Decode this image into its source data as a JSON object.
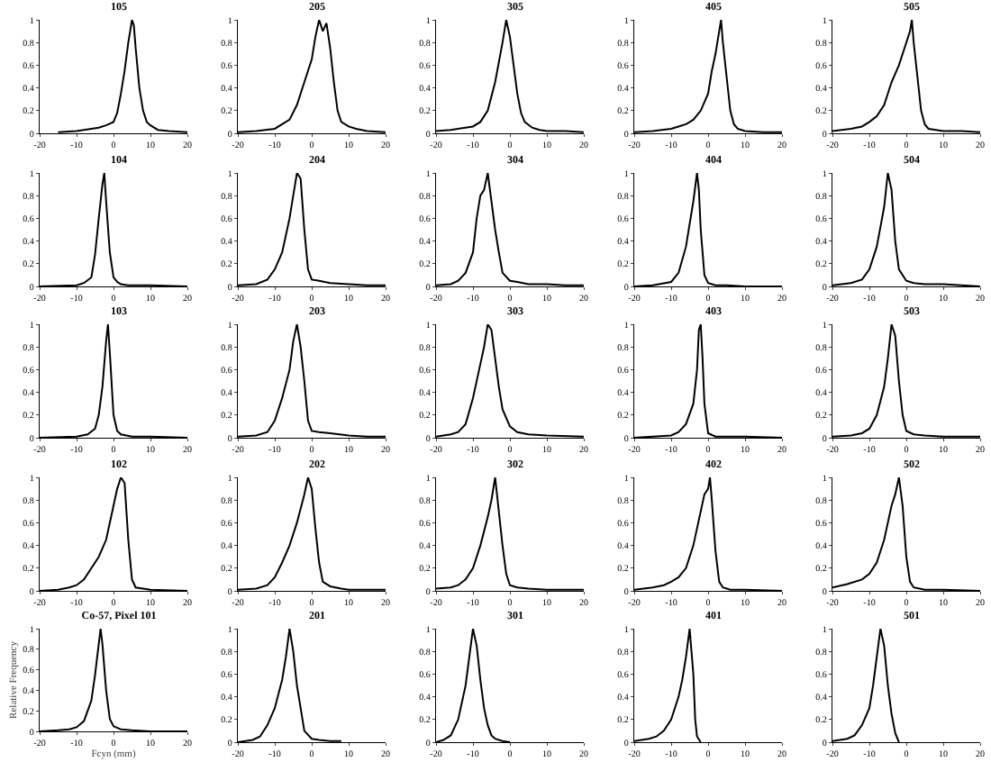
{
  "chart_data": [
    {
      "type": "line",
      "title": "105",
      "color": "#000000",
      "xlim": [
        -20,
        20
      ],
      "ylim": [
        0,
        1
      ],
      "xticks": [
        -20,
        -10,
        0,
        10,
        20
      ],
      "yticks": [
        0,
        0.2,
        0.4,
        0.6,
        0.8,
        1
      ],
      "x": [
        -15,
        -10,
        -6,
        -4,
        -2,
        0,
        1,
        2,
        3,
        4,
        4.5,
        5,
        5.5,
        6,
        7,
        8,
        9,
        10,
        12,
        15,
        20
      ],
      "values": [
        0.01,
        0.02,
        0.04,
        0.05,
        0.07,
        0.1,
        0.18,
        0.35,
        0.55,
        0.8,
        0.9,
        1,
        0.95,
        0.75,
        0.4,
        0.2,
        0.1,
        0.07,
        0.03,
        0.02,
        0.01
      ]
    },
    {
      "type": "line",
      "title": "205",
      "color": "#000000",
      "xlim": [
        -20,
        20
      ],
      "ylim": [
        0,
        1
      ],
      "xticks": [
        -20,
        -10,
        0,
        10,
        20
      ],
      "yticks": [
        0,
        0.2,
        0.4,
        0.6,
        0.8,
        1
      ],
      "x": [
        -20,
        -15,
        -10,
        -8,
        -6,
        -4,
        -2,
        0,
        1,
        2,
        3,
        4,
        5,
        6,
        7,
        8,
        10,
        12,
        15,
        20
      ],
      "values": [
        0.01,
        0.02,
        0.04,
        0.08,
        0.12,
        0.25,
        0.45,
        0.65,
        0.85,
        1,
        0.9,
        0.97,
        0.75,
        0.45,
        0.2,
        0.1,
        0.06,
        0.04,
        0.02,
        0.01
      ]
    },
    {
      "type": "line",
      "title": "305",
      "color": "#000000",
      "xlim": [
        -20,
        20
      ],
      "ylim": [
        0,
        1
      ],
      "xticks": [
        -20,
        -10,
        0,
        10,
        20
      ],
      "yticks": [
        0,
        0.2,
        0.4,
        0.6,
        0.8,
        1
      ],
      "x": [
        -20,
        -16,
        -12,
        -10,
        -8,
        -6,
        -4,
        -2,
        -1,
        0,
        1,
        2,
        3,
        4,
        6,
        8,
        10,
        15,
        20
      ],
      "values": [
        0.02,
        0.03,
        0.05,
        0.06,
        0.1,
        0.2,
        0.45,
        0.8,
        1,
        0.85,
        0.6,
        0.35,
        0.18,
        0.1,
        0.05,
        0.03,
        0.02,
        0.02,
        0.01
      ]
    },
    {
      "type": "line",
      "title": "405",
      "color": "#000000",
      "xlim": [
        -20,
        20
      ],
      "ylim": [
        0,
        1
      ],
      "xticks": [
        -20,
        -10,
        0,
        10,
        20
      ],
      "yticks": [
        0,
        0.2,
        0.4,
        0.6,
        0.8,
        1
      ],
      "x": [
        -20,
        -15,
        -10,
        -8,
        -6,
        -4,
        -2,
        0,
        1,
        2,
        3,
        3.5,
        4,
        5,
        6,
        7,
        8,
        10,
        15,
        20
      ],
      "values": [
        0.01,
        0.02,
        0.04,
        0.06,
        0.08,
        0.12,
        0.2,
        0.35,
        0.55,
        0.7,
        0.9,
        1,
        0.8,
        0.5,
        0.2,
        0.08,
        0.04,
        0.02,
        0.01,
        0.01
      ]
    },
    {
      "type": "line",
      "title": "505",
      "color": "#000000",
      "xlim": [
        -20,
        20
      ],
      "ylim": [
        0,
        1
      ],
      "xticks": [
        -20,
        -10,
        0,
        10,
        20
      ],
      "yticks": [
        0,
        0.2,
        0.4,
        0.6,
        0.8,
        1
      ],
      "x": [
        -20,
        -15,
        -12,
        -10,
        -8,
        -6,
        -4,
        -2,
        0,
        1,
        1.5,
        2,
        3,
        4,
        5,
        6,
        8,
        10,
        15,
        20
      ],
      "values": [
        0.02,
        0.04,
        0.06,
        0.1,
        0.15,
        0.25,
        0.45,
        0.6,
        0.8,
        0.9,
        1,
        0.8,
        0.5,
        0.2,
        0.08,
        0.04,
        0.03,
        0.02,
        0.02,
        0.01
      ]
    },
    {
      "type": "line",
      "title": "104",
      "color": "#000000",
      "xlim": [
        -20,
        20
      ],
      "ylim": [
        0,
        1
      ],
      "xticks": [
        -20,
        -10,
        0,
        10,
        20
      ],
      "yticks": [
        0,
        0.2,
        0.4,
        0.6,
        0.8,
        1
      ],
      "x": [
        -20,
        -10,
        -8,
        -6,
        -5,
        -4,
        -3,
        -2.5,
        -2,
        -1,
        0,
        1,
        2,
        4,
        10,
        20
      ],
      "values": [
        0,
        0.01,
        0.03,
        0.08,
        0.28,
        0.6,
        0.9,
        1,
        0.75,
        0.3,
        0.08,
        0.04,
        0.02,
        0.01,
        0.01,
        0
      ]
    },
    {
      "type": "line",
      "title": "204",
      "color": "#000000",
      "xlim": [
        -20,
        20
      ],
      "ylim": [
        0,
        1
      ],
      "xticks": [
        -20,
        -10,
        0,
        10,
        20
      ],
      "yticks": [
        0,
        0.2,
        0.4,
        0.6,
        0.8,
        1
      ],
      "x": [
        -20,
        -15,
        -12,
        -10,
        -8,
        -6,
        -5,
        -4,
        -3,
        -2,
        -1,
        0,
        2,
        5,
        10,
        15,
        20
      ],
      "values": [
        0.01,
        0.02,
        0.06,
        0.15,
        0.3,
        0.6,
        0.8,
        1,
        0.95,
        0.5,
        0.15,
        0.06,
        0.05,
        0.03,
        0.02,
        0.01,
        0.01
      ]
    },
    {
      "type": "line",
      "title": "304",
      "color": "#000000",
      "xlim": [
        -20,
        20
      ],
      "ylim": [
        0,
        1
      ],
      "xticks": [
        -20,
        -10,
        0,
        10,
        20
      ],
      "yticks": [
        0,
        0.2,
        0.4,
        0.6,
        0.8,
        1
      ],
      "x": [
        -20,
        -16,
        -14,
        -12,
        -10,
        -9,
        -8,
        -7,
        -6,
        -5,
        -4,
        -3,
        -2,
        0,
        2,
        5,
        10,
        15,
        20
      ],
      "values": [
        0.01,
        0.02,
        0.05,
        0.12,
        0.3,
        0.6,
        0.8,
        0.85,
        1,
        0.75,
        0.5,
        0.3,
        0.12,
        0.05,
        0.04,
        0.02,
        0.02,
        0.01,
        0.01
      ]
    },
    {
      "type": "line",
      "title": "404",
      "color": "#000000",
      "xlim": [
        -20,
        20
      ],
      "ylim": [
        0,
        1
      ],
      "xticks": [
        -20,
        -10,
        0,
        10,
        20
      ],
      "yticks": [
        0,
        0.2,
        0.4,
        0.6,
        0.8,
        1
      ],
      "x": [
        -20,
        -15,
        -10,
        -8,
        -6,
        -5,
        -4,
        -3,
        -2.5,
        -2,
        -1,
        0,
        2,
        5,
        10,
        20
      ],
      "values": [
        0,
        0.01,
        0.04,
        0.12,
        0.35,
        0.55,
        0.75,
        1,
        0.85,
        0.5,
        0.1,
        0.03,
        0.01,
        0.01,
        0,
        0
      ]
    },
    {
      "type": "line",
      "title": "504",
      "color": "#000000",
      "xlim": [
        -20,
        20
      ],
      "ylim": [
        0,
        1
      ],
      "xticks": [
        -20,
        -10,
        0,
        10,
        20
      ],
      "yticks": [
        0,
        0.2,
        0.4,
        0.6,
        0.8,
        1
      ],
      "x": [
        -20,
        -15,
        -12,
        -10,
        -8,
        -6,
        -5,
        -4,
        -3,
        -2,
        0,
        2,
        5,
        10,
        15,
        20
      ],
      "values": [
        0.01,
        0.03,
        0.06,
        0.15,
        0.35,
        0.7,
        1,
        0.85,
        0.4,
        0.15,
        0.05,
        0.03,
        0.02,
        0.02,
        0.01,
        0
      ]
    },
    {
      "type": "line",
      "title": "103",
      "color": "#000000",
      "xlim": [
        -20,
        20
      ],
      "ylim": [
        0,
        1
      ],
      "xticks": [
        -20,
        -10,
        0,
        10,
        20
      ],
      "yticks": [
        0,
        0.2,
        0.4,
        0.6,
        0.8,
        1
      ],
      "x": [
        -20,
        -10,
        -7,
        -5,
        -4,
        -3,
        -2,
        -1.5,
        -1,
        0,
        1,
        2,
        5,
        10,
        20
      ],
      "values": [
        0,
        0.01,
        0.03,
        0.08,
        0.2,
        0.45,
        0.85,
        1,
        0.75,
        0.2,
        0.06,
        0.03,
        0.01,
        0.01,
        0
      ]
    },
    {
      "type": "line",
      "title": "203",
      "color": "#000000",
      "xlim": [
        -20,
        20
      ],
      "ylim": [
        0,
        1
      ],
      "xticks": [
        -20,
        -10,
        0,
        10,
        20
      ],
      "yticks": [
        0,
        0.2,
        0.4,
        0.6,
        0.8,
        1
      ],
      "x": [
        -20,
        -15,
        -12,
        -10,
        -8,
        -6,
        -5,
        -4,
        -3,
        -2,
        -1,
        0,
        2,
        5,
        10,
        15,
        20
      ],
      "values": [
        0.01,
        0.02,
        0.05,
        0.15,
        0.35,
        0.6,
        0.85,
        1,
        0.8,
        0.5,
        0.15,
        0.06,
        0.05,
        0.04,
        0.02,
        0.01,
        0.01
      ]
    },
    {
      "type": "line",
      "title": "303",
      "color": "#000000",
      "xlim": [
        -20,
        20
      ],
      "ylim": [
        0,
        1
      ],
      "xticks": [
        -20,
        -10,
        0,
        10,
        20
      ],
      "yticks": [
        0,
        0.2,
        0.4,
        0.6,
        0.8,
        1
      ],
      "x": [
        -20,
        -16,
        -14,
        -12,
        -10,
        -8,
        -7,
        -6,
        -5,
        -4,
        -3,
        -2,
        0,
        2,
        5,
        10,
        20
      ],
      "values": [
        0.01,
        0.03,
        0.05,
        0.12,
        0.35,
        0.65,
        0.8,
        1,
        0.95,
        0.7,
        0.45,
        0.25,
        0.1,
        0.05,
        0.03,
        0.02,
        0.01
      ]
    },
    {
      "type": "line",
      "title": "403",
      "color": "#000000",
      "xlim": [
        -20,
        20
      ],
      "ylim": [
        0,
        1
      ],
      "xticks": [
        -20,
        -10,
        0,
        10,
        20
      ],
      "yticks": [
        0,
        0.2,
        0.4,
        0.6,
        0.8,
        1
      ],
      "x": [
        -20,
        -15,
        -10,
        -8,
        -6,
        -4,
        -3,
        -2.5,
        -2,
        -1.5,
        -1,
        0,
        2,
        10,
        20
      ],
      "values": [
        0,
        0.01,
        0.02,
        0.05,
        0.12,
        0.3,
        0.6,
        0.95,
        1,
        0.7,
        0.3,
        0.04,
        0.01,
        0.01,
        0
      ]
    },
    {
      "type": "line",
      "title": "503",
      "color": "#000000",
      "xlim": [
        -20,
        20
      ],
      "ylim": [
        0,
        1
      ],
      "xticks": [
        -20,
        -10,
        0,
        10,
        20
      ],
      "yticks": [
        0,
        0.2,
        0.4,
        0.6,
        0.8,
        1
      ],
      "x": [
        -20,
        -15,
        -12,
        -10,
        -8,
        -6,
        -5,
        -4,
        -3,
        -2,
        -1,
        0,
        2,
        5,
        10,
        20
      ],
      "values": [
        0.01,
        0.02,
        0.04,
        0.08,
        0.2,
        0.45,
        0.7,
        1,
        0.9,
        0.5,
        0.2,
        0.06,
        0.03,
        0.02,
        0.01,
        0.01
      ]
    },
    {
      "type": "line",
      "title": "102",
      "color": "#000000",
      "xlim": [
        -20,
        20
      ],
      "ylim": [
        0,
        1
      ],
      "xticks": [
        -20,
        -10,
        0,
        10,
        20
      ],
      "yticks": [
        0,
        0.2,
        0.4,
        0.6,
        0.8,
        1
      ],
      "x": [
        -20,
        -15,
        -12,
        -10,
        -8,
        -6,
        -4,
        -2,
        0,
        1,
        2,
        3,
        4,
        5,
        6,
        8,
        10,
        20
      ],
      "values": [
        0,
        0.01,
        0.03,
        0.05,
        0.1,
        0.2,
        0.3,
        0.45,
        0.75,
        0.9,
        1,
        0.95,
        0.45,
        0.1,
        0.03,
        0.02,
        0.01,
        0
      ]
    },
    {
      "type": "line",
      "title": "202",
      "color": "#000000",
      "xlim": [
        -20,
        20
      ],
      "ylim": [
        0,
        1
      ],
      "xticks": [
        -20,
        -10,
        0,
        10,
        20
      ],
      "yticks": [
        0,
        0.2,
        0.4,
        0.6,
        0.8,
        1
      ],
      "x": [
        -20,
        -15,
        -12,
        -10,
        -8,
        -6,
        -4,
        -2,
        -1,
        0,
        1,
        2,
        3,
        5,
        8,
        10,
        20
      ],
      "values": [
        0.01,
        0.02,
        0.05,
        0.12,
        0.25,
        0.4,
        0.6,
        0.85,
        1,
        0.9,
        0.55,
        0.25,
        0.08,
        0.04,
        0.02,
        0.01,
        0.01
      ]
    },
    {
      "type": "line",
      "title": "302",
      "color": "#000000",
      "xlim": [
        -20,
        20
      ],
      "ylim": [
        0,
        1
      ],
      "xticks": [
        -20,
        -10,
        0,
        10,
        20
      ],
      "yticks": [
        0,
        0.2,
        0.4,
        0.6,
        0.8,
        1
      ],
      "x": [
        -20,
        -16,
        -14,
        -12,
        -10,
        -8,
        -6,
        -5,
        -4,
        -3,
        -2,
        -1,
        0,
        2,
        5,
        10,
        20
      ],
      "values": [
        0.02,
        0.03,
        0.05,
        0.1,
        0.2,
        0.4,
        0.65,
        0.8,
        1,
        0.7,
        0.4,
        0.15,
        0.05,
        0.03,
        0.02,
        0.01,
        0.01
      ]
    },
    {
      "type": "line",
      "title": "402",
      "color": "#000000",
      "xlim": [
        -20,
        20
      ],
      "ylim": [
        0,
        1
      ],
      "xticks": [
        -20,
        -10,
        0,
        10,
        20
      ],
      "yticks": [
        0,
        0.2,
        0.4,
        0.6,
        0.8,
        1
      ],
      "x": [
        -20,
        -15,
        -12,
        -10,
        -8,
        -6,
        -4,
        -2,
        -1,
        0,
        0.5,
        1,
        2,
        3,
        4,
        6,
        10,
        20
      ],
      "values": [
        0.01,
        0.03,
        0.05,
        0.08,
        0.12,
        0.2,
        0.4,
        0.7,
        0.85,
        0.9,
        1,
        0.8,
        0.35,
        0.08,
        0.03,
        0.01,
        0.01,
        0
      ]
    },
    {
      "type": "line",
      "title": "502",
      "color": "#000000",
      "xlim": [
        -20,
        20
      ],
      "ylim": [
        0,
        1
      ],
      "xticks": [
        -20,
        -10,
        0,
        10,
        20
      ],
      "yticks": [
        0,
        0.2,
        0.4,
        0.6,
        0.8,
        1
      ],
      "x": [
        -20,
        -16,
        -12,
        -10,
        -8,
        -6,
        -4,
        -3,
        -2,
        -1,
        0,
        1,
        2,
        5,
        10,
        20
      ],
      "values": [
        0.03,
        0.06,
        0.1,
        0.15,
        0.25,
        0.45,
        0.75,
        0.85,
        1,
        0.75,
        0.3,
        0.08,
        0.03,
        0.01,
        0.01,
        0
      ]
    },
    {
      "type": "line",
      "title": "Co-57, Pixel 101",
      "xlabel": "Fcyn (mm)",
      "ylabel": "Relative Frequency",
      "color": "#000000",
      "xlim": [
        -20,
        20
      ],
      "ylim": [
        0,
        1
      ],
      "xticks": [
        -20,
        -10,
        0,
        10,
        20
      ],
      "yticks": [
        0,
        0.2,
        0.4,
        0.6,
        0.8,
        1
      ],
      "x": [
        -20,
        -15,
        -12,
        -10,
        -8,
        -6,
        -5,
        -4,
        -3.5,
        -3,
        -2,
        -1,
        0,
        2,
        5,
        10,
        20
      ],
      "values": [
        0,
        0.01,
        0.02,
        0.04,
        0.1,
        0.3,
        0.55,
        0.85,
        1,
        0.85,
        0.4,
        0.12,
        0.05,
        0.02,
        0.01,
        0,
        0
      ]
    },
    {
      "type": "line",
      "title": "201",
      "color": "#000000",
      "xlim": [
        -20,
        20
      ],
      "ylim": [
        0,
        1
      ],
      "xticks": [
        -20,
        -10,
        0,
        10,
        20
      ],
      "yticks": [
        0,
        0.2,
        0.4,
        0.6,
        0.8,
        1
      ],
      "x": [
        -20,
        -16,
        -14,
        -12,
        -10,
        -8,
        -7,
        -6,
        -5,
        -4,
        -3,
        -2,
        0,
        2,
        5,
        8
      ],
      "values": [
        0,
        0.02,
        0.05,
        0.15,
        0.3,
        0.55,
        0.75,
        1,
        0.8,
        0.5,
        0.3,
        0.1,
        0.03,
        0.02,
        0.01,
        0.01
      ]
    },
    {
      "type": "line",
      "title": "301",
      "color": "#000000",
      "xlim": [
        -20,
        20
      ],
      "ylim": [
        0,
        1
      ],
      "xticks": [
        -20,
        -10,
        0,
        10,
        20
      ],
      "yticks": [
        0,
        0.2,
        0.4,
        0.6,
        0.8,
        1
      ],
      "x": [
        -20,
        -18,
        -16,
        -14,
        -12,
        -11,
        -10,
        -9,
        -8,
        -7,
        -6,
        -5,
        -4,
        -2,
        0
      ],
      "values": [
        0,
        0.02,
        0.06,
        0.2,
        0.5,
        0.75,
        1,
        0.85,
        0.55,
        0.3,
        0.15,
        0.06,
        0.03,
        0.01,
        0
      ]
    },
    {
      "type": "line",
      "title": "401",
      "color": "#000000",
      "xlim": [
        -20,
        20
      ],
      "ylim": [
        0,
        1
      ],
      "xticks": [
        -20,
        -10,
        0,
        10,
        20
      ],
      "yticks": [
        0,
        0.2,
        0.4,
        0.6,
        0.8,
        1
      ],
      "x": [
        -20,
        -16,
        -14,
        -12,
        -10,
        -8,
        -7,
        -6,
        -5,
        -4,
        -3.5,
        -3,
        -2
      ],
      "values": [
        0.01,
        0.03,
        0.05,
        0.1,
        0.2,
        0.4,
        0.55,
        0.75,
        1,
        0.6,
        0.2,
        0.05,
        0
      ]
    },
    {
      "type": "line",
      "title": "501",
      "color": "#000000",
      "xlim": [
        -20,
        20
      ],
      "ylim": [
        0,
        1
      ],
      "xticks": [
        -20,
        -10,
        0,
        10,
        20
      ],
      "yticks": [
        0,
        0.2,
        0.4,
        0.6,
        0.8,
        1
      ],
      "x": [
        -20,
        -16,
        -14,
        -12,
        -10,
        -9,
        -8,
        -7,
        -6,
        -5,
        -4,
        -3,
        -2
      ],
      "values": [
        0.01,
        0.03,
        0.06,
        0.15,
        0.3,
        0.5,
        0.75,
        1,
        0.85,
        0.5,
        0.25,
        0.08,
        0
      ]
    }
  ]
}
